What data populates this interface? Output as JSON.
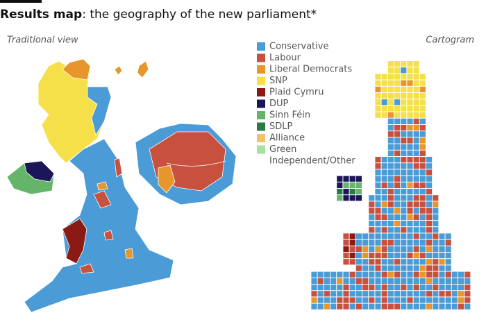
{
  "header": {
    "title_bold": "Results map",
    "title_rest": ": the geography of the new parliament*"
  },
  "panels": {
    "left": "Traditional view",
    "right": "Cartogram"
  },
  "legend": [
    {
      "name": "Conservative",
      "color": "#4a9bd6"
    },
    {
      "name": "Labour",
      "color": "#c8503f"
    },
    {
      "name": "Liberal Democrats",
      "color": "#e6962c"
    },
    {
      "name": "SNP",
      "color": "#f5e04a"
    },
    {
      "name": "Plaid Cymru",
      "color": "#8b1a14"
    },
    {
      "name": "DUP",
      "color": "#1c1659"
    },
    {
      "name": "Sinn Féin",
      "color": "#64b46a"
    },
    {
      "name": "SDLP",
      "color": "#2a7a45"
    },
    {
      "name": "Alliance",
      "color": "#f2c469"
    },
    {
      "name": "Green",
      "color": "#a6e3a1"
    },
    {
      "name": "Independent/Other"
    }
  ]
}
